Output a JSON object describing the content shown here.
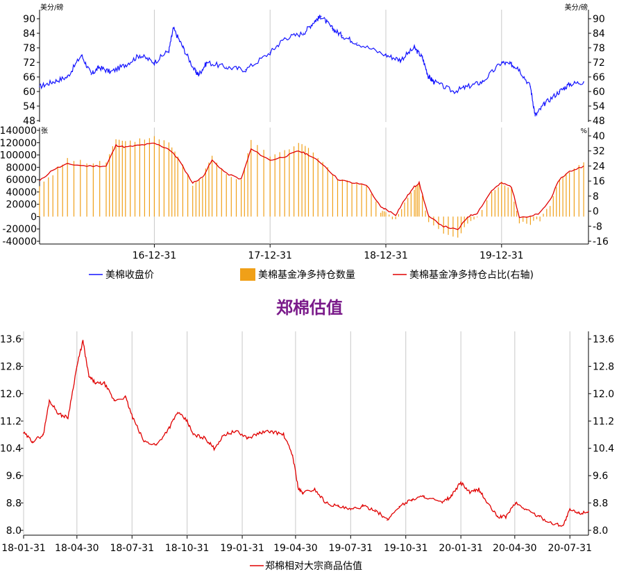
{
  "colors": {
    "cotton_close": "#1414ff",
    "fund_bars": "#f0a018",
    "fund_ratio": "#e00000",
    "valuation": "#e00000",
    "title": "#7a1a8a",
    "axis": "#000000",
    "grid": "#c8c8c8"
  },
  "chart_data": [
    {
      "type": "line",
      "title": "",
      "left_unit": "美分/磅",
      "right_unit": "美分/磅",
      "ylim": [
        48,
        92
      ],
      "yticks": [
        48,
        54,
        60,
        66,
        72,
        78,
        84,
        90
      ],
      "yticks_label": [
        "48",
        "54",
        "60",
        "66",
        "72",
        "78",
        "84",
        "90"
      ],
      "series": [
        {
          "name": "美棉收盘价",
          "x": [
            "2016-01-04",
            "2016-02-15",
            "2016-04-01",
            "2016-05-15",
            "2016-06-15",
            "2016-07-10",
            "2016-08-15",
            "2016-10-01",
            "2016-11-15",
            "2016-12-31",
            "2017-02-15",
            "2017-03-01",
            "2017-04-01",
            "2017-05-10",
            "2017-05-20",
            "2017-06-15",
            "2017-08-15",
            "2017-10-15",
            "2017-12-31",
            "2018-02-15",
            "2018-04-15",
            "2018-05-20",
            "2018-06-10",
            "2018-07-15",
            "2018-08-15",
            "2018-10-01",
            "2018-12-31",
            "2019-02-15",
            "2019-03-31",
            "2019-04-25",
            "2019-05-15",
            "2019-06-01",
            "2019-08-01",
            "2019-09-15",
            "2019-11-01",
            "2019-12-31",
            "2020-01-31",
            "2020-02-20",
            "2020-03-31",
            "2020-04-15",
            "2020-05-15",
            "2020-06-30",
            "2020-08-01",
            "2020-09-15"
          ],
          "values": [
            62,
            64,
            66,
            75,
            67,
            70,
            68,
            71,
            75,
            72,
            77,
            86,
            78,
            68,
            67,
            72,
            70,
            69,
            76,
            82,
            84,
            89,
            91,
            86,
            83,
            80,
            75,
            73,
            78,
            74,
            66,
            64,
            60,
            62,
            64,
            72,
            71,
            70,
            62,
            50,
            55,
            60,
            63,
            64
          ]
        }
      ]
    },
    {
      "type": "bar",
      "left_unit": "张",
      "right_unit": "%",
      "ylim": [
        -40000,
        140000
      ],
      "yticks": [
        -40000,
        -20000,
        0,
        20000,
        40000,
        60000,
        80000,
        100000,
        120000,
        140000
      ],
      "yticks_label": [
        "-40000",
        "-20000",
        "0",
        "20000",
        "40000",
        "60000",
        "80000",
        "100000",
        "120000",
        "140000"
      ],
      "right_ylim": [
        -16,
        40
      ],
      "right_yticks": [
        -16,
        -8,
        0,
        8,
        16,
        24,
        32,
        40
      ],
      "right_yticks_label": [
        "-16",
        "-8",
        "0",
        "8",
        "16",
        "24",
        "32",
        "40"
      ],
      "series": [
        {
          "name": "美棉基金净多持仓数量",
          "x": [
            "2016-01-04",
            "2016-02-15",
            "2016-04-01",
            "2016-06-01",
            "2016-08-01",
            "2016-09-01",
            "2016-10-01",
            "2016-11-15",
            "2016-12-31",
            "2017-02-15",
            "2017-03-15",
            "2017-05-01",
            "2017-06-01",
            "2017-07-01",
            "2017-08-15",
            "2017-10-01",
            "2017-11-01",
            "2017-12-31",
            "2018-02-15",
            "2018-03-31",
            "2018-05-01",
            "2018-06-15",
            "2018-08-01",
            "2018-09-15",
            "2018-10-31",
            "2018-12-15",
            "2018-12-31",
            "2019-01-31",
            "2019-02-28",
            "2019-03-31",
            "2019-04-15",
            "2019-05-15",
            "2019-07-01",
            "2019-08-15",
            "2019-09-15",
            "2019-10-15",
            "2019-11-30",
            "2019-12-31",
            "2020-01-31",
            "2020-02-25",
            "2020-03-31",
            "2020-04-30",
            "2020-06-01",
            "2020-07-01",
            "2020-08-01",
            "2020-09-15"
          ],
          "values": [
            50000,
            70000,
            95000,
            88000,
            88000,
            125000,
            120000,
            125000,
            130000,
            120000,
            100000,
            50000,
            65000,
            100000,
            70000,
            60000,
            125000,
            100000,
            105000,
            120000,
            110000,
            90000,
            60000,
            55000,
            50000,
            8000,
            5000,
            -5000,
            20000,
            45000,
            55000,
            -10000,
            -28000,
            -35000,
            -10000,
            -3000,
            40000,
            55000,
            45000,
            -10000,
            -12000,
            -5000,
            20000,
            60000,
            75000,
            88000
          ]
        },
        {
          "name": "美棉基金净多持仓占比(右轴)",
          "x": [
            "2016-01-04",
            "2016-02-15",
            "2016-04-01",
            "2016-06-01",
            "2016-08-01",
            "2016-09-01",
            "2016-10-01",
            "2016-11-15",
            "2016-12-31",
            "2017-02-15",
            "2017-03-15",
            "2017-05-01",
            "2017-06-01",
            "2017-07-01",
            "2017-08-15",
            "2017-10-01",
            "2017-11-01",
            "2017-12-31",
            "2018-02-15",
            "2018-03-31",
            "2018-05-01",
            "2018-06-15",
            "2018-08-01",
            "2018-09-15",
            "2018-10-31",
            "2018-12-15",
            "2018-12-31",
            "2019-01-31",
            "2019-02-28",
            "2019-03-31",
            "2019-04-15",
            "2019-05-15",
            "2019-07-01",
            "2019-08-15",
            "2019-09-15",
            "2019-10-15",
            "2019-11-30",
            "2019-12-31",
            "2020-01-31",
            "2020-02-25",
            "2020-03-31",
            "2020-04-30",
            "2020-06-01",
            "2020-07-01",
            "2020-08-01",
            "2020-09-15"
          ],
          "values": [
            16,
            22,
            25,
            24,
            24,
            35,
            34,
            35,
            36,
            33,
            28,
            15,
            18,
            27,
            20,
            17,
            33,
            27,
            29,
            32,
            30,
            25,
            17,
            15,
            14,
            2,
            1,
            -2,
            6,
            13,
            15,
            -3,
            -8,
            -10,
            -3,
            -1,
            11,
            15,
            13,
            -3,
            -3,
            -1,
            6,
            17,
            21,
            24
          ]
        }
      ],
      "xticks_label": [
        "16-12-31",
        "17-12-31",
        "18-12-31",
        "19-12-31"
      ],
      "xticks": [
        "2016-12-31",
        "2017-12-31",
        "2018-12-31",
        "2019-12-31"
      ],
      "xlim": [
        "2016-01-04",
        "2020-09-30"
      ],
      "legend": "bottom"
    },
    {
      "type": "line",
      "title": "郑棉估值",
      "ylim": [
        8.0,
        13.6
      ],
      "yticks": [
        8.0,
        8.8,
        9.6,
        10.4,
        11.2,
        12.0,
        12.8,
        13.6
      ],
      "yticks_label": [
        "8.0",
        "8.8",
        "9.6",
        "10.4",
        "11.2",
        "12.0",
        "12.8",
        "13.6"
      ],
      "xticks": [
        "2018-01-31",
        "2018-04-30",
        "2018-07-31",
        "2018-10-31",
        "2019-01-31",
        "2019-04-30",
        "2019-07-31",
        "2019-10-31",
        "2020-01-31",
        "2020-04-30",
        "2020-07-31"
      ],
      "xticks_label": [
        "18-01-31",
        "18-04-30",
        "18-07-31",
        "18-10-31",
        "19-01-31",
        "19-04-30",
        "19-07-31",
        "19-10-31",
        "20-01-31",
        "20-04-30",
        "20-07-31"
      ],
      "xlim": [
        "2018-01-31",
        "2020-08-31"
      ],
      "legend": "bottom",
      "series": [
        {
          "name": "郑棉相对大宗商品估值",
          "x": [
            "2018-01-31",
            "2018-02-15",
            "2018-03-05",
            "2018-03-15",
            "2018-03-31",
            "2018-04-15",
            "2018-04-30",
            "2018-05-10",
            "2018-05-20",
            "2018-06-01",
            "2018-06-15",
            "2018-07-01",
            "2018-07-20",
            "2018-08-01",
            "2018-08-20",
            "2018-09-10",
            "2018-10-01",
            "2018-10-15",
            "2018-10-31",
            "2018-11-10",
            "2018-11-30",
            "2018-12-15",
            "2019-01-01",
            "2019-01-20",
            "2019-02-10",
            "2019-03-01",
            "2019-03-20",
            "2019-04-10",
            "2019-04-25",
            "2019-05-05",
            "2019-05-12",
            "2019-06-01",
            "2019-06-20",
            "2019-07-10",
            "2019-07-31",
            "2019-08-20",
            "2019-09-10",
            "2019-09-30",
            "2019-10-20",
            "2019-11-10",
            "2019-12-01",
            "2019-12-31",
            "2020-01-15",
            "2020-01-31",
            "2020-02-15",
            "2020-03-01",
            "2020-03-15",
            "2020-04-01",
            "2020-04-15",
            "2020-05-01",
            "2020-05-20",
            "2020-06-10",
            "2020-07-01",
            "2020-07-20",
            "2020-07-31",
            "2020-08-15",
            "2020-08-31"
          ],
          "values": [
            10.85,
            10.6,
            10.8,
            11.8,
            11.4,
            11.3,
            12.8,
            13.55,
            12.5,
            12.3,
            12.3,
            11.8,
            11.9,
            11.3,
            10.6,
            10.5,
            11.0,
            11.45,
            11.2,
            10.8,
            10.7,
            10.4,
            10.8,
            10.9,
            10.7,
            10.85,
            10.9,
            10.8,
            10.2,
            9.2,
            9.1,
            9.2,
            8.8,
            8.7,
            8.6,
            8.7,
            8.6,
            8.3,
            8.7,
            8.9,
            9.0,
            8.8,
            9.0,
            9.4,
            9.1,
            9.2,
            8.8,
            8.4,
            8.4,
            8.8,
            8.6,
            8.4,
            8.2,
            8.15,
            8.6,
            8.5,
            8.55
          ]
        }
      ]
    }
  ]
}
